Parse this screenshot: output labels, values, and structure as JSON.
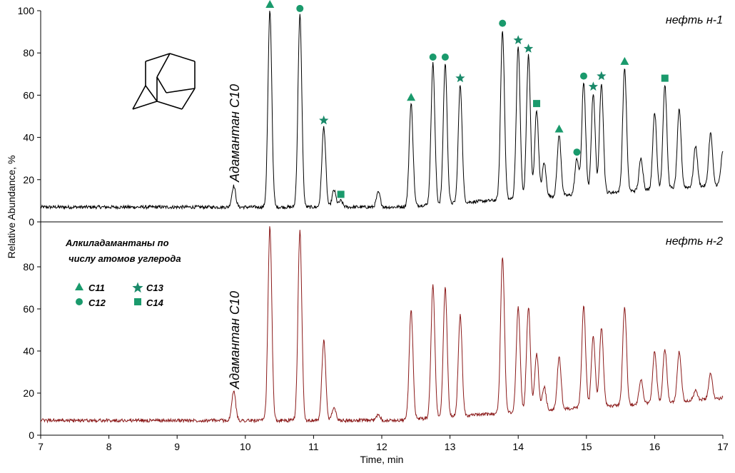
{
  "chart_data": {
    "type": "line",
    "xlabel": "Time, min",
    "ylabel": "Relative Abundance, %",
    "xlim": [
      7,
      17
    ],
    "x_ticks": [
      "7",
      "8",
      "9",
      "10",
      "11",
      "12",
      "13",
      "14",
      "15",
      "16",
      "17"
    ],
    "marker_color": "#1a9a6c",
    "panels": [
      {
        "sample": "нефть н-1",
        "line_color": "#000000",
        "ylim": [
          0,
          100
        ],
        "y_ticks": [
          "0",
          "20",
          "40",
          "60",
          "80",
          "100"
        ],
        "baseline": 7,
        "peak_label": {
          "text": "Адамантан  С10",
          "x": 9.83
        },
        "peaks": [
          {
            "x": 9.83,
            "y": 17
          },
          {
            "x": 10.36,
            "y": 100,
            "marker": "C11"
          },
          {
            "x": 10.8,
            "y": 98,
            "marker": "C12"
          },
          {
            "x": 11.15,
            "y": 45,
            "marker": "C13"
          },
          {
            "x": 11.3,
            "y": 15
          },
          {
            "x": 11.4,
            "y": 10,
            "marker": "C14"
          },
          {
            "x": 11.95,
            "y": 14
          },
          {
            "x": 12.43,
            "y": 56,
            "marker": "C11"
          },
          {
            "x": 12.75,
            "y": 75,
            "marker": "C12"
          },
          {
            "x": 12.93,
            "y": 75,
            "marker": "C12"
          },
          {
            "x": 13.15,
            "y": 65,
            "marker": "C13"
          },
          {
            "x": 13.77,
            "y": 91,
            "marker": "C12"
          },
          {
            "x": 14.0,
            "y": 83,
            "marker": "C13"
          },
          {
            "x": 14.15,
            "y": 79,
            "marker": "C13"
          },
          {
            "x": 14.27,
            "y": 53,
            "marker": "C14"
          },
          {
            "x": 14.38,
            "y": 28
          },
          {
            "x": 14.6,
            "y": 41,
            "marker": "C11"
          },
          {
            "x": 14.86,
            "y": 30,
            "marker": "C12"
          },
          {
            "x": 14.96,
            "y": 66,
            "marker": "C12"
          },
          {
            "x": 15.1,
            "y": 61,
            "marker": "C13"
          },
          {
            "x": 15.22,
            "y": 66,
            "marker": "C13"
          },
          {
            "x": 15.56,
            "y": 73,
            "marker": "C11"
          },
          {
            "x": 15.8,
            "y": 30
          },
          {
            "x": 16.0,
            "y": 52
          },
          {
            "x": 16.15,
            "y": 65,
            "marker": "C14"
          },
          {
            "x": 16.36,
            "y": 53
          },
          {
            "x": 16.6,
            "y": 36
          },
          {
            "x": 16.82,
            "y": 42
          },
          {
            "x": 17.0,
            "y": 33
          }
        ]
      },
      {
        "sample": "нефть н-2",
        "line_color": "#8b1a1a",
        "ylim": [
          0,
          100
        ],
        "y_ticks": [
          "0",
          "20",
          "40",
          "60",
          "80"
        ],
        "baseline": 7,
        "peak_label": {
          "text": "Адамантан  С10",
          "x": 9.83
        },
        "peaks": [
          {
            "x": 9.83,
            "y": 21
          },
          {
            "x": 10.36,
            "y": 99
          },
          {
            "x": 10.8,
            "y": 97
          },
          {
            "x": 11.15,
            "y": 45
          },
          {
            "x": 11.3,
            "y": 13
          },
          {
            "x": 11.95,
            "y": 10
          },
          {
            "x": 12.43,
            "y": 59
          },
          {
            "x": 12.75,
            "y": 71
          },
          {
            "x": 12.93,
            "y": 70
          },
          {
            "x": 13.15,
            "y": 57
          },
          {
            "x": 13.77,
            "y": 85
          },
          {
            "x": 14.0,
            "y": 61
          },
          {
            "x": 14.15,
            "y": 61
          },
          {
            "x": 14.27,
            "y": 39
          },
          {
            "x": 14.38,
            "y": 23
          },
          {
            "x": 14.6,
            "y": 37
          },
          {
            "x": 14.96,
            "y": 61
          },
          {
            "x": 15.1,
            "y": 47
          },
          {
            "x": 15.22,
            "y": 51
          },
          {
            "x": 15.56,
            "y": 61
          },
          {
            "x": 15.8,
            "y": 26
          },
          {
            "x": 16.0,
            "y": 40
          },
          {
            "x": 16.15,
            "y": 41
          },
          {
            "x": 16.36,
            "y": 40
          },
          {
            "x": 16.6,
            "y": 21
          },
          {
            "x": 16.82,
            "y": 29
          },
          {
            "x": 17.0,
            "y": 18
          }
        ]
      }
    ]
  },
  "legend": {
    "title_line1": "Алкиладамантаны  по",
    "title_line2": "числу атомов углерода",
    "items": [
      {
        "shape": "triangle",
        "label": "C11"
      },
      {
        "shape": "star",
        "label": "C13"
      },
      {
        "shape": "circle",
        "label": "C12"
      },
      {
        "shape": "square",
        "label": "C14"
      }
    ]
  },
  "structure_icon": "adamantane-structure"
}
